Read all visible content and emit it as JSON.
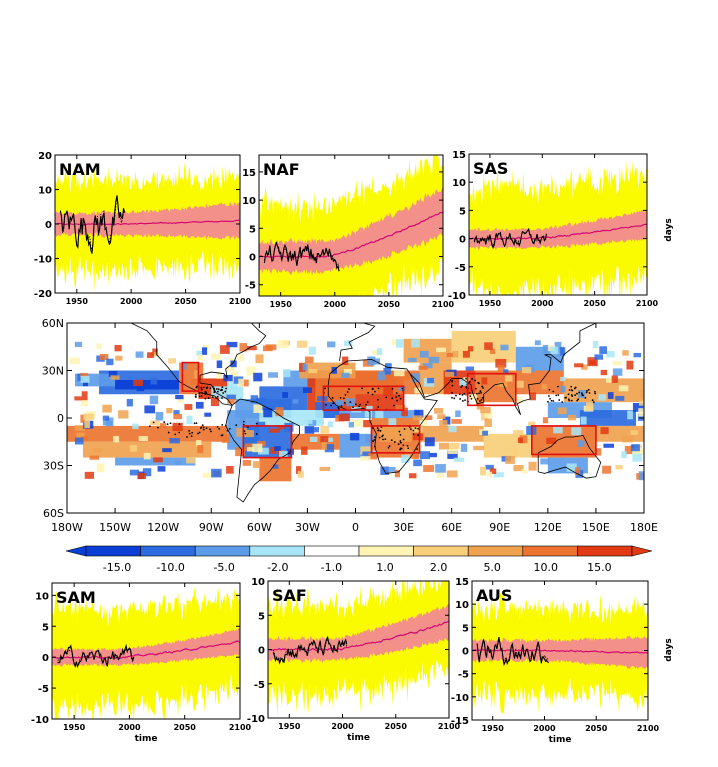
{
  "days_label": "days",
  "time_label": "time",
  "colors": {
    "yellow": "#fbfb00",
    "salmon": "#f4908a",
    "mean": "#e0005a",
    "model": "#9a45e6",
    "obs": "#000000",
    "box": "#e01010"
  },
  "panels": [
    {
      "name": "NAM",
      "ylim": [
        -20,
        20
      ],
      "yticks": [
        "20",
        "10",
        "0",
        "-10",
        "-20"
      ],
      "xticks": [
        "1950",
        "2000",
        "2050",
        "2100"
      ],
      "xlim": [
        1930,
        2100
      ]
    },
    {
      "name": "NAF",
      "ylim": [
        -7,
        18
      ],
      "yticks": [
        "15",
        "10",
        "5",
        "0",
        "-5"
      ],
      "xticks": [
        "1950",
        "2000",
        "2050",
        "2100"
      ],
      "xlim": [
        1930,
        2100
      ]
    },
    {
      "name": "SAS",
      "ylim": [
        -10,
        15
      ],
      "yticks": [
        "15",
        "10",
        "5",
        "0",
        "-5",
        "-10"
      ],
      "xticks": [
        "1950",
        "2000",
        "2050",
        "2100"
      ],
      "xlim": [
        1930,
        2100
      ]
    },
    {
      "name": "SAM",
      "ylim": [
        -10,
        12
      ],
      "yticks": [
        "10",
        "5",
        "0",
        "-5",
        "-10"
      ],
      "xticks": [
        "1950",
        "2000",
        "2050",
        "2100"
      ],
      "xlim": [
        1930,
        2100
      ]
    },
    {
      "name": "SAF",
      "ylim": [
        -10,
        10
      ],
      "yticks": [
        "10",
        "5",
        "0",
        "-5",
        "-10"
      ],
      "xticks": [
        "1950",
        "2000",
        "2050",
        "2100"
      ],
      "xlim": [
        1930,
        2100
      ]
    },
    {
      "name": "AUS",
      "ylim": [
        -15,
        15
      ],
      "yticks": [
        "15",
        "10",
        "5",
        "0",
        "-5",
        "-10",
        "-15"
      ],
      "xticks": [
        "1950",
        "2000",
        "2050",
        "2100"
      ],
      "xlim": [
        1930,
        2100
      ]
    }
  ],
  "map": {
    "lat_ticks": [
      "60N",
      "30N",
      "0",
      "30S",
      "60S"
    ],
    "lon_ticks": [
      "180W",
      "150W",
      "120W",
      "90W",
      "60W",
      "30W",
      "0",
      "30E",
      "60E",
      "90E",
      "120E",
      "150E",
      "180E"
    ],
    "regions": [
      {
        "name": "NAM",
        "lon": [
          -108,
          -98
        ],
        "lat": [
          17,
          35
        ]
      },
      {
        "name": "NAF",
        "lon": [
          -20,
          30
        ],
        "lat": [
          5,
          20
        ]
      },
      {
        "name": "SAS",
        "lon": [
          70,
          100
        ],
        "lat": [
          8,
          28
        ]
      },
      {
        "name": "SAM",
        "lon": [
          -70,
          -40
        ],
        "lat": [
          -25,
          -5
        ]
      },
      {
        "name": "SAF",
        "lon": [
          10,
          40
        ],
        "lat": [
          -22,
          -5
        ]
      },
      {
        "name": "AUS",
        "lon": [
          110,
          150
        ],
        "lat": [
          -23,
          -5
        ]
      }
    ]
  },
  "colorbar": {
    "labels": [
      "-15.0",
      "-10.0",
      "-5.0",
      "-2.0",
      "-1.0",
      "1.0",
      "2.0",
      "5.0",
      "10.0",
      "15.0"
    ],
    "colors": [
      "#0a3fd6",
      "#2d6be0",
      "#5d9ce8",
      "#a8e6f7",
      "#ffffff",
      "#fff4b3",
      "#f9cf7a",
      "#f0a24f",
      "#ec7430",
      "#e23a12"
    ]
  },
  "chart_data": {
    "type": "line",
    "x_range": [
      1930,
      2100
    ],
    "y_unit": "days",
    "panels": [
      {
        "name": "NAM",
        "series": [
          {
            "values_summary": "multi-model mean near 0, rising to ~1 by 2100; observations range about -10 to +10"
          }
        ]
      },
      {
        "name": "NAF",
        "series": [
          {
            "values_summary": "mean ~0 in 1950-1990, rising to ~8 by 2100"
          }
        ]
      },
      {
        "name": "SAS",
        "series": [
          {
            "values_summary": "mean ~0 rising to ~2.5 by 2100"
          }
        ]
      },
      {
        "name": "SAM",
        "series": [
          {
            "values_summary": "mean ~0 rising to ~2.5 by 2100"
          }
        ]
      },
      {
        "name": "SAF",
        "series": [
          {
            "values_summary": "mean ~0 rising to ~4 by 2100"
          }
        ]
      },
      {
        "name": "AUS",
        "series": [
          {
            "values_summary": "mean ~0, slightly below 0 after 2050"
          }
        ]
      }
    ]
  }
}
